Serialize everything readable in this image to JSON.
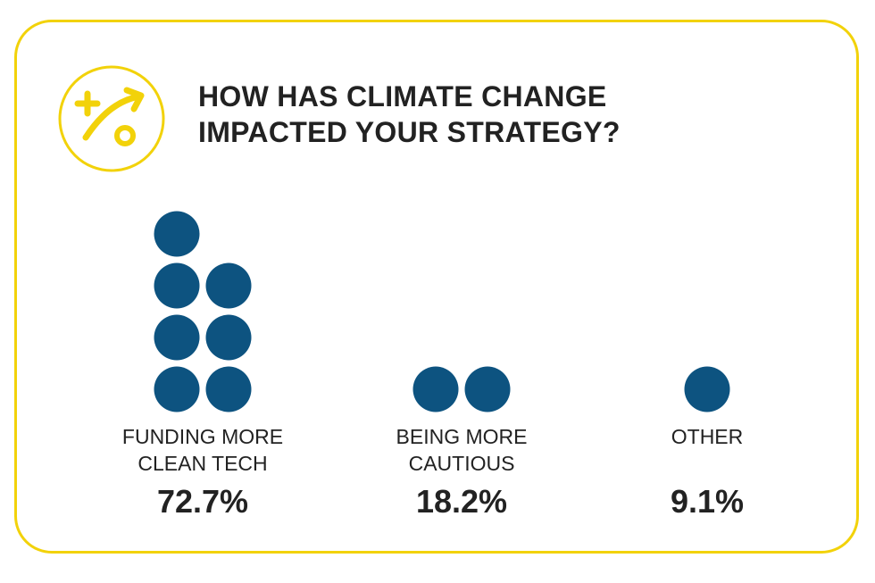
{
  "title": {
    "line1": "HOW HAS CLIMATE CHANGE",
    "line2": "IMPACTED YOUR STRATEGY?"
  },
  "icon": "strategy-play-icon",
  "colors": {
    "accent": "#f2d20a",
    "dot": "#0d5380",
    "text": "#222222"
  },
  "chart_data": {
    "type": "bar",
    "title": "HOW HAS CLIMATE CHANGE IMPACTED YOUR STRATEGY?",
    "categories": [
      [
        "FUNDING MORE",
        "CLEAN TECH"
      ],
      [
        "BEING MORE",
        "CAUTIOUS"
      ],
      [
        "OTHER"
      ]
    ],
    "values": [
      72.7,
      18.2,
      9.1
    ],
    "value_labels": [
      "72.7%",
      "18.2%",
      "9.1%"
    ],
    "dot_counts": [
      7,
      2,
      1
    ],
    "grid": false,
    "legend": "none"
  }
}
